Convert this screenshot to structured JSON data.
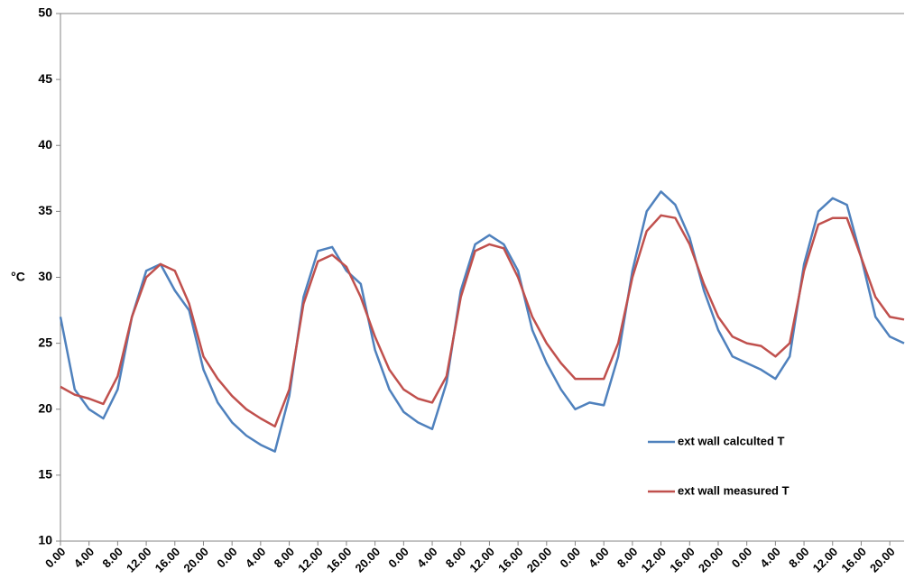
{
  "chart_data": {
    "type": "line",
    "y_label": "°C",
    "categories": [
      "0.00",
      null,
      "4.00",
      null,
      "8.00",
      null,
      "12.00",
      null,
      "16.00",
      null,
      "20.00",
      null,
      "0.00",
      null,
      "4.00",
      null,
      "8.00",
      null,
      "12.00",
      null,
      "16.00",
      null,
      "20.00",
      null,
      "0.00",
      null,
      "4.00",
      null,
      "8.00",
      null,
      "12.00",
      null,
      "16.00",
      null,
      "20.00",
      null,
      "0.00",
      null,
      "4.00",
      null,
      "8.00",
      null,
      "12.00",
      null,
      "16.00",
      null,
      "20.00",
      null,
      "0.00",
      null,
      "4.00",
      null,
      "8.00",
      null,
      "12.00",
      null,
      "16.00",
      null,
      "20.00",
      null
    ],
    "series": [
      {
        "name": "ext wall calculted T",
        "color": "#4f81bd",
        "values": [
          27,
          21.5,
          20.0,
          19.3,
          21.5,
          27,
          30.5,
          31.0,
          29.0,
          27.5,
          23,
          20.5,
          19.0,
          18.0,
          17.3,
          16.8,
          21,
          28.5,
          32.0,
          32.3,
          30.5,
          29.5,
          24.5,
          21.5,
          19.8,
          19.0,
          18.5,
          22,
          29,
          32.5,
          33.2,
          32.5,
          30.5,
          26,
          23.5,
          21.5,
          20.0,
          20.5,
          20.3,
          24,
          30.5,
          35.0,
          36.5,
          35.5,
          33.0,
          29.0,
          26.0,
          24.0,
          23.5,
          23.0,
          22.3,
          24,
          31,
          35.0,
          36.0,
          35.5,
          31.5,
          27.0,
          25.5,
          25.0
        ]
      },
      {
        "name": "ext wall measured T",
        "color": "#c0504d",
        "values": [
          21.7,
          21.1,
          20.8,
          20.4,
          22.5,
          27,
          30.0,
          31.0,
          30.5,
          28.0,
          24.0,
          22.3,
          21.0,
          20.0,
          19.3,
          18.7,
          21.5,
          28.0,
          31.2,
          31.7,
          30.8,
          28.5,
          25.5,
          23.0,
          21.5,
          20.8,
          20.5,
          22.5,
          28.5,
          32.0,
          32.5,
          32.2,
          30.0,
          27.0,
          25.0,
          23.5,
          22.3,
          22.3,
          22.3,
          25,
          30.0,
          33.5,
          34.7,
          34.5,
          32.5,
          29.5,
          27.0,
          25.5,
          25.0,
          24.8,
          24.0,
          25,
          30.5,
          34.0,
          34.5,
          34.5,
          31.5,
          28.5,
          27.0,
          26.8
        ]
      }
    ],
    "ylim": [
      10,
      50
    ],
    "yticks": [
      10,
      15,
      20,
      25,
      30,
      35,
      40,
      45,
      50
    ],
    "grid": false,
    "legend": "right"
  }
}
